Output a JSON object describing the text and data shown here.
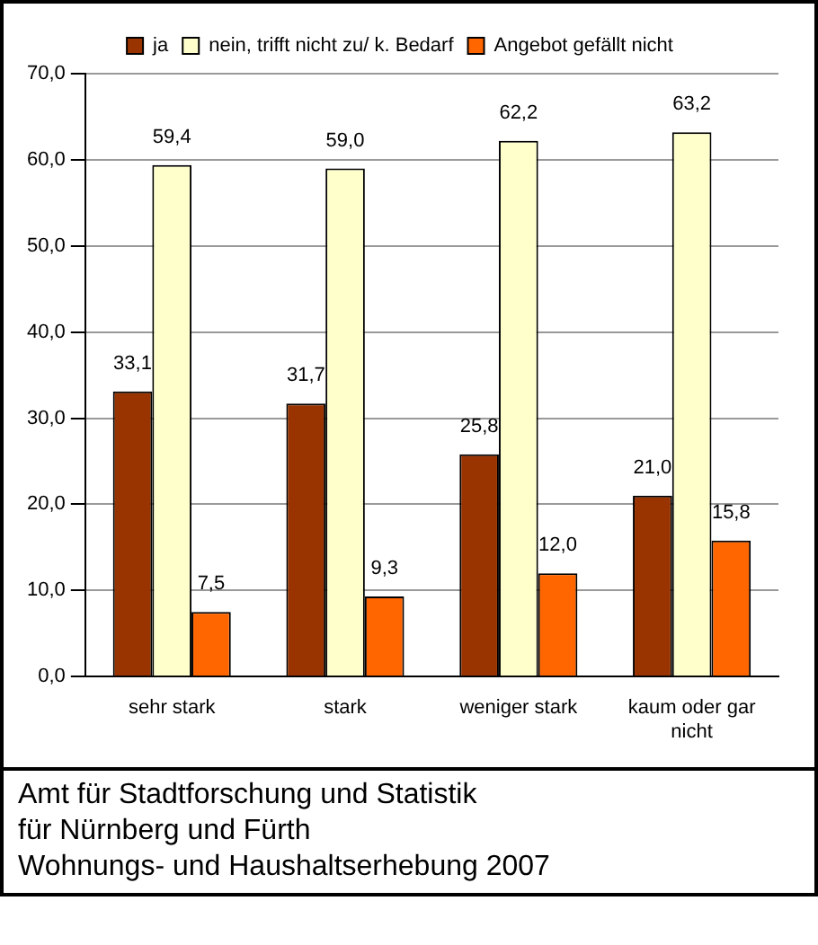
{
  "chart_data": {
    "type": "bar",
    "categories": [
      "sehr stark",
      "stark",
      "weniger stark",
      "kaum oder gar nicht"
    ],
    "series": [
      {
        "name": "ja",
        "color": "#993300",
        "values": [
          33.1,
          31.7,
          25.8,
          21.0
        ],
        "value_labels": [
          "33,1",
          "31,7",
          "25,8",
          "21,0"
        ]
      },
      {
        "name": "nein, trifft nicht zu/ k. Bedarf",
        "color": "#ffffcc",
        "values": [
          59.4,
          59.0,
          62.2,
          63.2
        ],
        "value_labels": [
          "59,4",
          "59,0",
          "62,2",
          "63,2"
        ]
      },
      {
        "name": "Angebot gefällt nicht",
        "color": "#ff6600",
        "values": [
          7.5,
          9.3,
          12.0,
          15.8
        ],
        "value_labels": [
          "7,5",
          "9,3",
          "12,0",
          "15,8"
        ]
      }
    ],
    "ylim": [
      0,
      70
    ],
    "yticks": [
      {
        "value": 0,
        "label": "0,0"
      },
      {
        "value": 10,
        "label": "10,0"
      },
      {
        "value": 20,
        "label": "20,0"
      },
      {
        "value": 30,
        "label": "30,0"
      },
      {
        "value": 40,
        "label": "40,0"
      },
      {
        "value": 50,
        "label": "50,0"
      },
      {
        "value": 60,
        "label": "60,0"
      },
      {
        "value": 70,
        "label": "70,0"
      }
    ],
    "grid": "y",
    "legend": "top",
    "annotations": [
      "Amt für Stadtforschung und Statistik",
      "für Nürnberg und Fürth",
      "Wohnungs- und Haushaltserhebung 2007"
    ]
  }
}
